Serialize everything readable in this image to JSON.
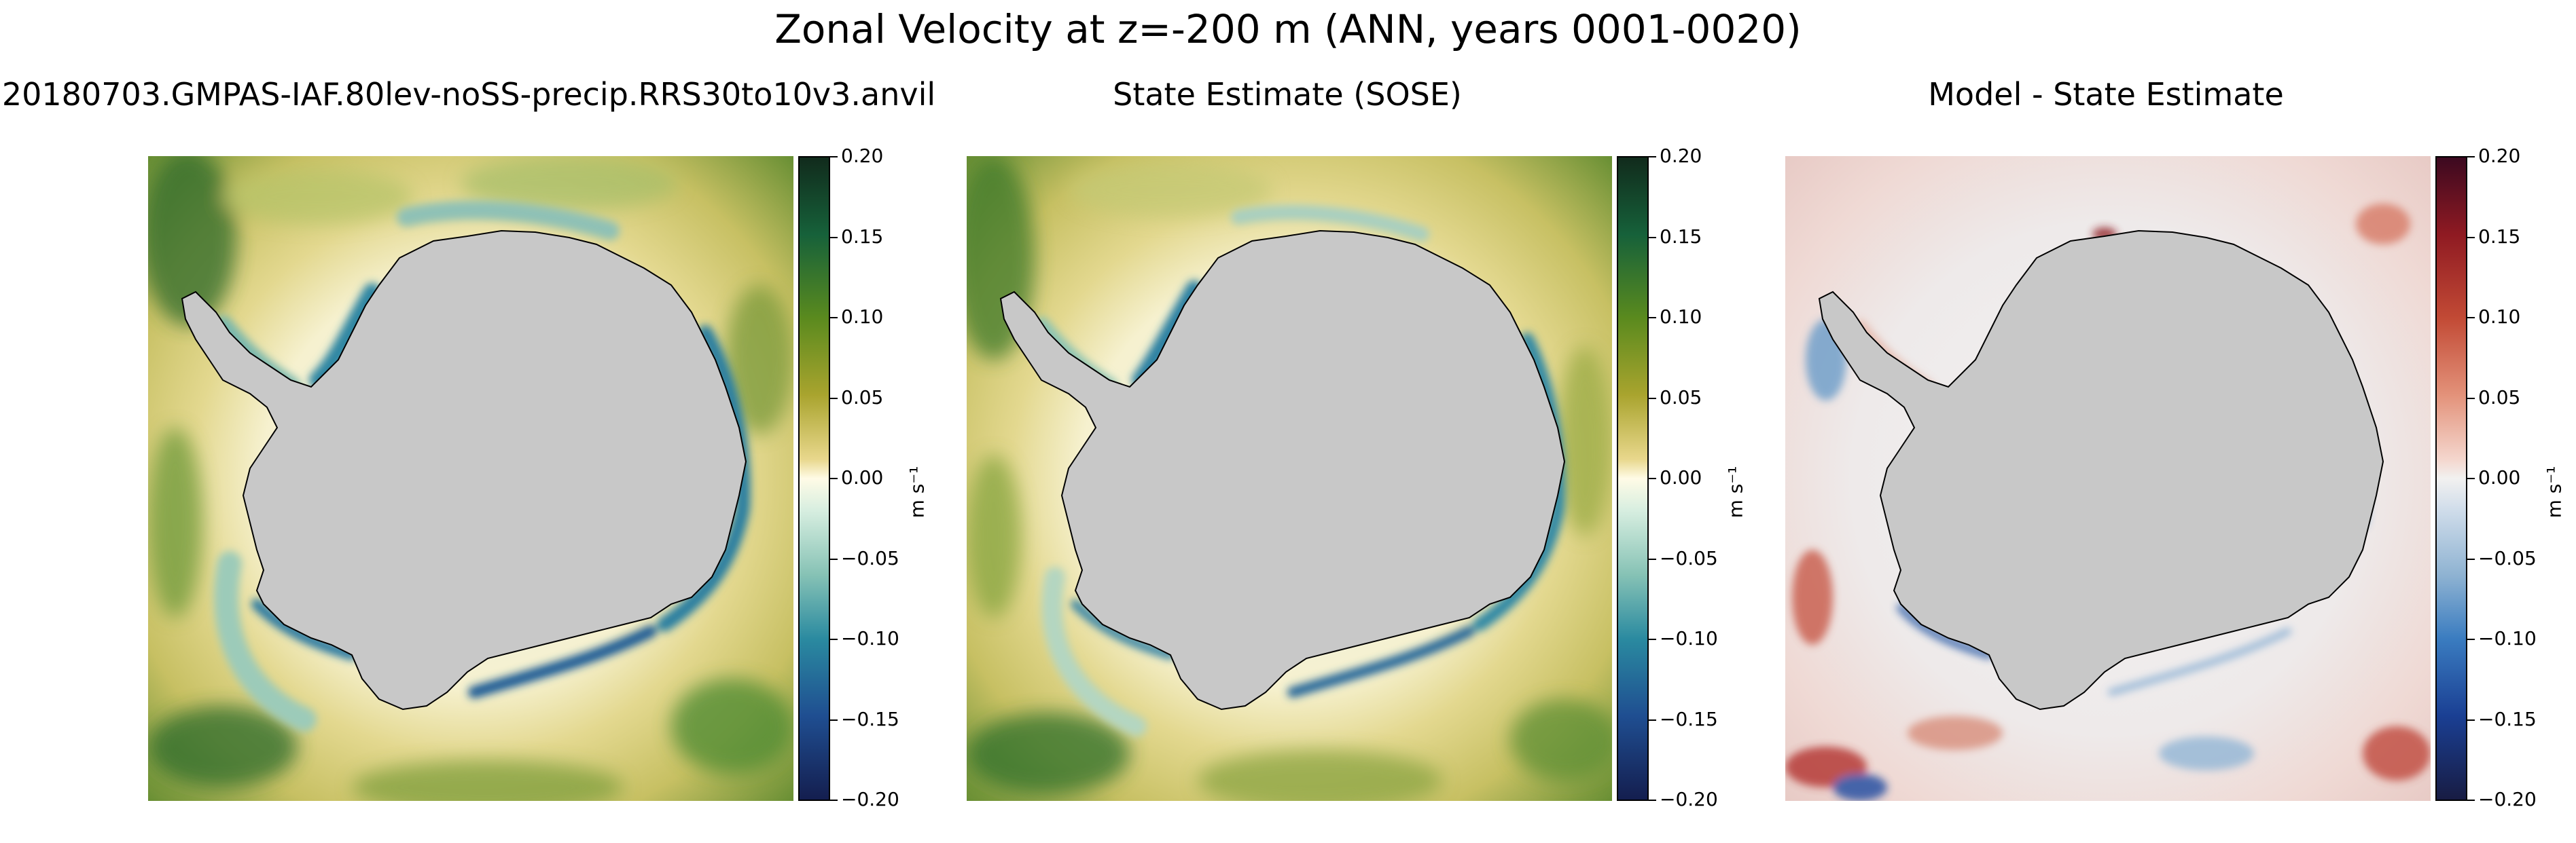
{
  "figure": {
    "title": "Zonal Velocity at z=-200 m (ANN, years 0001-0020)"
  },
  "panels": [
    {
      "title": "20180703.GMPAS-IAF.80lev-noSS-precip.RRS30to10v3.anvil",
      "colormap": "green-yellow-blue",
      "colorbar": {
        "ticks": [
          "0.20",
          "0.15",
          "0.10",
          "0.05",
          "0.00",
          "−0.05",
          "−0.10",
          "−0.15",
          "−0.20"
        ],
        "units": "m s⁻¹"
      }
    },
    {
      "title": "State Estimate (SOSE)",
      "colormap": "green-yellow-blue",
      "colorbar": {
        "ticks": [
          "0.20",
          "0.15",
          "0.10",
          "0.05",
          "0.00",
          "−0.05",
          "−0.10",
          "−0.15",
          "−0.20"
        ],
        "units": "m s⁻¹"
      }
    },
    {
      "title": "Model - State Estimate",
      "colormap": "red-white-blue",
      "colorbar": {
        "ticks": [
          "0.20",
          "0.15",
          "0.10",
          "0.05",
          "0.00",
          "−0.05",
          "−0.10",
          "−0.15",
          "−0.20"
        ],
        "units": "m s⁻¹"
      }
    }
  ],
  "colors": {
    "land": "#c8c8c8",
    "coastline": "#000000"
  }
}
